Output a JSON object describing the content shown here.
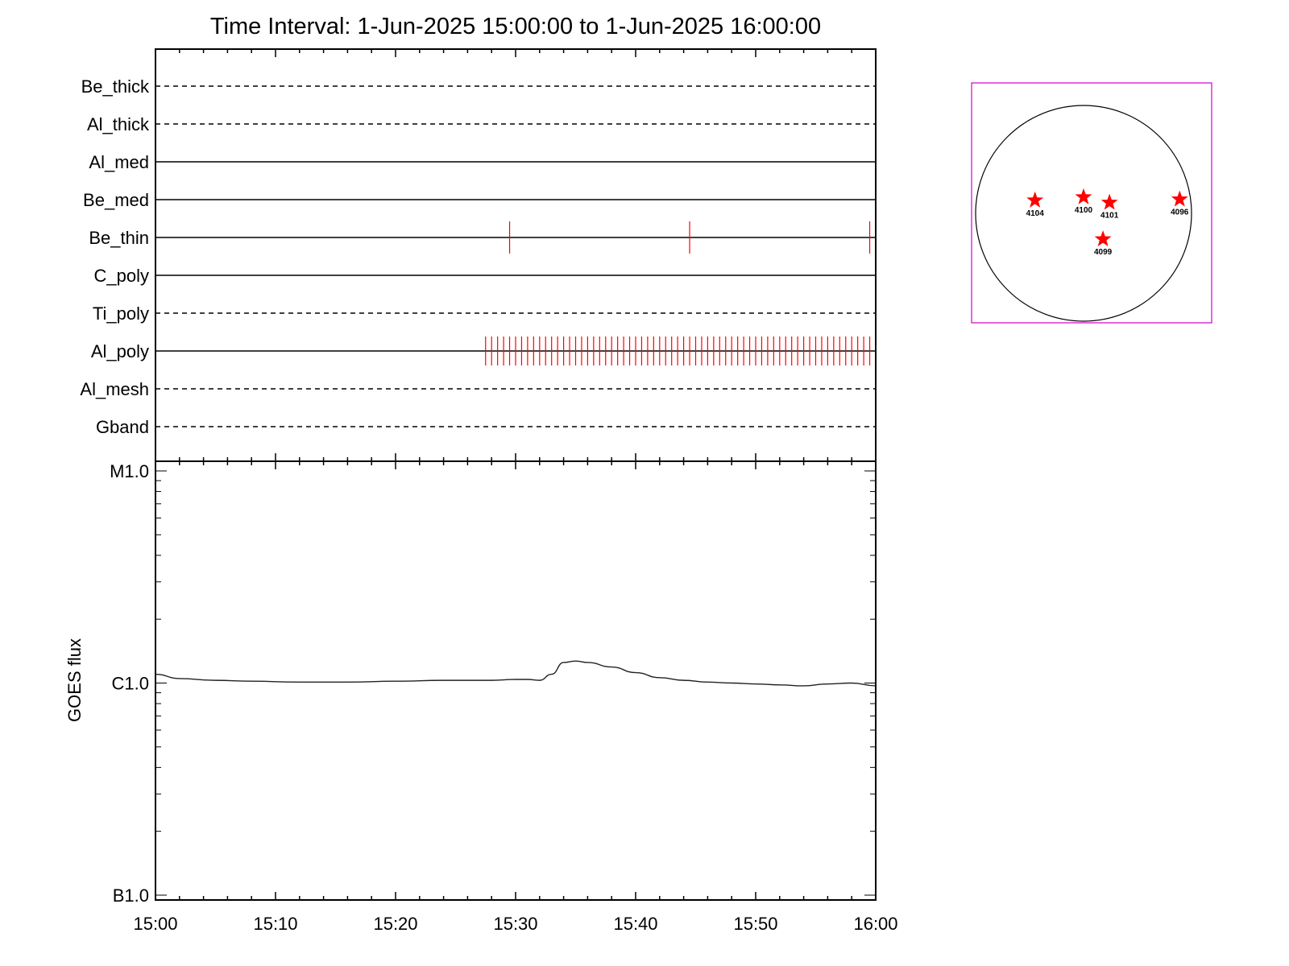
{
  "title": "Time Interval:  1-Jun-2025 15:00:00 to  1-Jun-2025 16:00:00",
  "colors": {
    "event_mark": "#ff0000",
    "sun_box": "#d000d0",
    "star": "#ff0000",
    "axis": "#000000"
  },
  "chart_data": [
    {
      "type": "timeline",
      "x_range": [
        "15:00",
        "16:00"
      ],
      "rows": [
        {
          "label": "Be_thick",
          "line": "dashed",
          "events": []
        },
        {
          "label": "Al_thick",
          "line": "dashed",
          "events": []
        },
        {
          "label": "Al_med",
          "line": "solid",
          "events": []
        },
        {
          "label": "Be_med",
          "line": "solid",
          "events": []
        },
        {
          "label": "Be_thin",
          "line": "solid",
          "events": [
            "15:29.5",
            "15:44.5",
            "15:59.5"
          ]
        },
        {
          "label": "C_poly",
          "line": "solid",
          "events": []
        },
        {
          "label": "Ti_poly",
          "line": "dashed",
          "events": []
        },
        {
          "label": "Al_poly",
          "line": "solid",
          "events_start": "15:27.5",
          "events_end": "15:59.7",
          "event_spacing_min": 0.5
        },
        {
          "label": "Al_mesh",
          "line": "dashed",
          "events": []
        },
        {
          "label": "Gband",
          "line": "dashed",
          "events": []
        }
      ]
    },
    {
      "type": "line",
      "ylabel": "GOES flux",
      "yscale": "log",
      "ylim": [
        1e-07,
        1e-05
      ],
      "ytick_labels": [
        {
          "label": "M1.0",
          "value": 1e-05
        },
        {
          "label": "C1.0",
          "value": 1e-06
        },
        {
          "label": "B1.0",
          "value": 1e-07
        }
      ],
      "xlim": [
        "15:00",
        "16:00"
      ],
      "xtick_labels": [
        "15:00",
        "15:10",
        "15:20",
        "15:30",
        "15:40",
        "15:50",
        "16:00"
      ],
      "series": [
        {
          "x": [
            0,
            2,
            5,
            8,
            12,
            16,
            20,
            24,
            28,
            30,
            31,
            32,
            33,
            34,
            35,
            36,
            38,
            40,
            42,
            44,
            46,
            48,
            50,
            52,
            54,
            56,
            58,
            60
          ],
          "y": [
            1.1e-06,
            1.05e-06,
            1.03e-06,
            1.02e-06,
            1.01e-06,
            1.01e-06,
            1.02e-06,
            1.03e-06,
            1.03e-06,
            1.04e-06,
            1.04e-06,
            1.03e-06,
            1.1e-06,
            1.25e-06,
            1.27e-06,
            1.25e-06,
            1.19e-06,
            1.12e-06,
            1.06e-06,
            1.03e-06,
            1.01e-06,
            1e-06,
            9.9e-07,
            9.8e-07,
            9.7e-07,
            9.9e-07,
            1e-06,
            9.7e-07
          ]
        }
      ]
    },
    {
      "type": "scatter",
      "solar_disk": true,
      "points": [
        {
          "label": "4104",
          "x": -0.45,
          "y": 0.12
        },
        {
          "label": "4100",
          "x": 0.0,
          "y": 0.15
        },
        {
          "label": "4101",
          "x": 0.24,
          "y": 0.1
        },
        {
          "label": "4096",
          "x": 0.89,
          "y": 0.13
        },
        {
          "label": "4099",
          "x": 0.18,
          "y": -0.24
        }
      ]
    }
  ]
}
